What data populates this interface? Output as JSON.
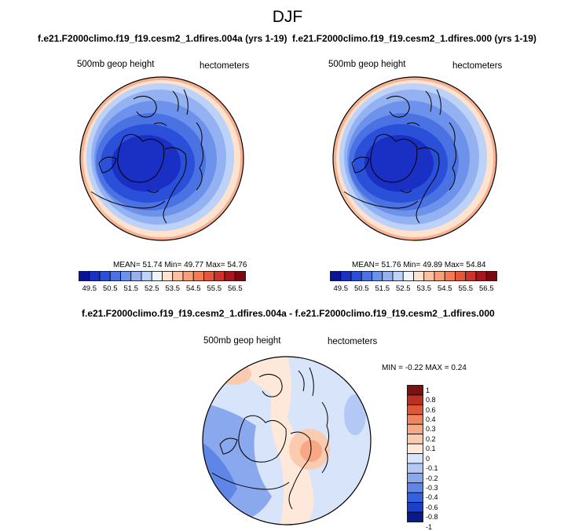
{
  "figure": {
    "season": "DJF",
    "diff_title": "f.e21.F2000climo.f19_f19.cesm2_1.dfires.004a - f.e21.F2000climo.f19_f19.cesm2_1.dfires.000"
  },
  "panels": [
    {
      "id": "left",
      "case_title": "f.e21.F2000climo.f19_f19.cesm2_1.dfires.004a (yrs 1-19)",
      "variable": "500mb geop height",
      "units": "hectometers",
      "mean_label": "MEAN=",
      "mean": "51.74",
      "min_label": "Min=",
      "min": "49.77",
      "max_label": "Max=",
      "max": "54.76"
    },
    {
      "id": "right",
      "case_title": "f.e21.F2000climo.f19_f19.cesm2_1.dfires.000 (yrs 1-19)",
      "variable": "500mb geop height",
      "units": "hectometers",
      "mean_label": "MEAN=",
      "mean": "51.76",
      "min_label": "Min=",
      "min": "49.89",
      "max_label": "Max=",
      "max": "54.84"
    }
  ],
  "diff_panel": {
    "variable": "500mb geop height",
    "units": "hectometers",
    "min_label": "MIN =",
    "min": "-0.22",
    "max_label": "MAX =",
    "max": "0.24"
  },
  "colorbar_abs": {
    "colors": [
      "#08139a",
      "#1a2fc4",
      "#2a4fd8",
      "#4a72e2",
      "#6d92ec",
      "#94b2f2",
      "#bdd2f8",
      "#eef5ff",
      "#fde2cf",
      "#fbc0a0",
      "#f89e78",
      "#f27b54",
      "#e3583b",
      "#c9352a",
      "#a8161b",
      "#7a0a10"
    ],
    "tick_labels": [
      "49.5",
      "50.5",
      "51.5",
      "52.5",
      "53.5",
      "54.5",
      "55.5",
      "56.5"
    ]
  },
  "colorbar_diff": {
    "colors": [
      "#0a1a8a",
      "#1a3fc8",
      "#3561de",
      "#5f86e6",
      "#8aa8ee",
      "#b3c8f4",
      "#d7e4fa",
      "#fde8da",
      "#fbcbb0",
      "#f7a985",
      "#ef845d",
      "#dc5838",
      "#b9311f",
      "#7d1010"
    ],
    "tick_labels": [
      "1",
      "0.8",
      "0.6",
      "0.4",
      "0.3",
      "0.2",
      "0.1",
      "0",
      "-0.1",
      "-0.2",
      "-0.3",
      "-0.4",
      "-0.6",
      "-0.8",
      "-1"
    ]
  }
}
